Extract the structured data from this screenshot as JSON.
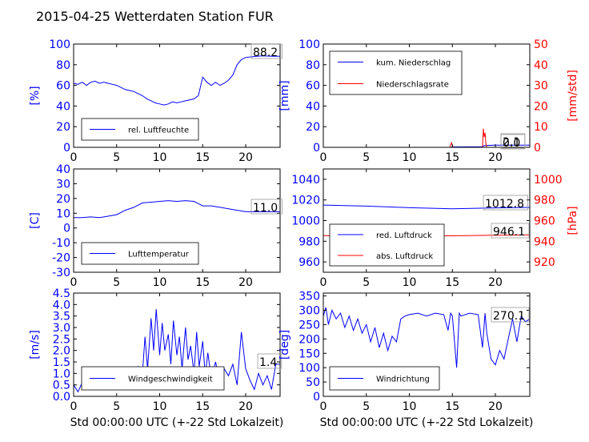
{
  "figure": {
    "title": "2015-04-25 Wetterdaten Station FUR",
    "xlabel": "Std 00:00:00 UTC (+-22 Std Lokalzeit)",
    "colors": {
      "blue": "#0000ff",
      "red": "#ff0000",
      "axis": "#000000"
    }
  },
  "chart_data": [
    {
      "type": "line",
      "name": "humidity",
      "ylabel": "[%]",
      "xlim": [
        0,
        24
      ],
      "ylim": [
        0,
        100
      ],
      "xticks": [
        0,
        5,
        10,
        15,
        20
      ],
      "yticks": [
        0,
        20,
        40,
        60,
        80,
        100
      ],
      "legend": [
        "rel. Luftfeuchte"
      ],
      "legend_loc": "lower-left",
      "last_value": "88.2",
      "series": [
        {
          "name": "rel. Luftfeuchte",
          "color": "#0000ff",
          "points": [
            [
              0,
              62
            ],
            [
              0.5,
              61
            ],
            [
              1,
              63
            ],
            [
              1.5,
              60
            ],
            [
              2,
              63
            ],
            [
              2.5,
              64
            ],
            [
              3,
              62
            ],
            [
              3.5,
              63
            ],
            [
              4,
              62
            ],
            [
              4.5,
              61
            ],
            [
              5,
              60
            ],
            [
              5.5,
              58
            ],
            [
              6,
              56
            ],
            [
              6.5,
              55
            ],
            [
              7,
              54
            ],
            [
              7.5,
              52
            ],
            [
              8,
              50
            ],
            [
              8.5,
              47
            ],
            [
              9,
              45
            ],
            [
              9.5,
              43
            ],
            [
              10,
              42
            ],
            [
              10.5,
              41
            ],
            [
              11,
              42
            ],
            [
              11.5,
              44
            ],
            [
              12,
              43
            ],
            [
              12.5,
              44
            ],
            [
              13,
              45
            ],
            [
              13.5,
              46
            ],
            [
              14,
              47
            ],
            [
              14.5,
              50
            ],
            [
              15,
              68
            ],
            [
              15.5,
              63
            ],
            [
              16,
              60
            ],
            [
              16.5,
              63
            ],
            [
              17,
              60
            ],
            [
              17.5,
              62
            ],
            [
              18,
              65
            ],
            [
              18.5,
              70
            ],
            [
              19,
              80
            ],
            [
              19.5,
              85
            ],
            [
              20,
              87
            ],
            [
              21,
              88
            ],
            [
              22,
              88.5
            ],
            [
              23,
              88.2
            ],
            [
              24,
              88.2
            ]
          ]
        }
      ]
    },
    {
      "type": "line",
      "name": "precipitation",
      "ylabel": "[mm]",
      "ylabel2": "[mm/std]",
      "xlim": [
        0,
        24
      ],
      "ylim": [
        0,
        100
      ],
      "ylim2": [
        0,
        50
      ],
      "xticks": [
        0,
        5,
        10,
        15,
        20
      ],
      "yticks": [
        0,
        20,
        40,
        60,
        80,
        100
      ],
      "yticks2": [
        0,
        10,
        20,
        30,
        40,
        50
      ],
      "legend": [
        "kum. Niederschlag",
        "Niederschlagsrate"
      ],
      "legend_loc": "upper-left",
      "last_values": [
        "2.1",
        "0.0"
      ],
      "series": [
        {
          "name": "kum. Niederschlag",
          "color": "#0000ff",
          "axis": "left",
          "points": [
            [
              0,
              0
            ],
            [
              14.8,
              0
            ],
            [
              15,
              0.4
            ],
            [
              18.5,
              0.6
            ],
            [
              18.7,
              1.8
            ],
            [
              20,
              2.1
            ],
            [
              24,
              2.1
            ]
          ]
        },
        {
          "name": "Niederschlagsrate",
          "color": "#ff0000",
          "axis": "right",
          "points": [
            [
              0,
              0
            ],
            [
              14.7,
              0
            ],
            [
              14.8,
              1.2
            ],
            [
              14.9,
              2.2
            ],
            [
              15,
              1.0
            ],
            [
              15.1,
              0
            ],
            [
              18.5,
              0
            ],
            [
              18.6,
              9
            ],
            [
              18.7,
              5
            ],
            [
              18.8,
              7
            ],
            [
              18.9,
              1.5
            ],
            [
              19,
              0
            ],
            [
              24,
              0
            ]
          ]
        }
      ]
    },
    {
      "type": "line",
      "name": "temperature",
      "ylabel": "[C]",
      "xlim": [
        0,
        24
      ],
      "ylim": [
        -30,
        40
      ],
      "xticks": [
        0,
        5,
        10,
        15,
        20
      ],
      "yticks": [
        -30,
        -20,
        -10,
        0,
        10,
        20,
        30,
        40
      ],
      "legend": [
        "Lufttemperatur"
      ],
      "legend_loc": "lower-left",
      "last_value": "11.0",
      "series": [
        {
          "name": "Lufttemperatur",
          "color": "#0000ff",
          "points": [
            [
              0,
              7
            ],
            [
              1,
              7
            ],
            [
              2,
              7.5
            ],
            [
              3,
              7
            ],
            [
              4,
              8
            ],
            [
              5,
              9
            ],
            [
              6,
              12
            ],
            [
              7,
              14
            ],
            [
              8,
              17
            ],
            [
              9,
              17.5
            ],
            [
              10,
              18
            ],
            [
              11,
              18.5
            ],
            [
              12,
              18
            ],
            [
              13,
              18.5
            ],
            [
              14,
              18
            ],
            [
              15,
              15
            ],
            [
              16,
              15
            ],
            [
              17,
              14
            ],
            [
              18,
              13
            ],
            [
              19,
              12
            ],
            [
              20,
              11
            ],
            [
              21,
              11
            ],
            [
              22,
              11
            ],
            [
              23,
              11
            ],
            [
              24,
              11
            ]
          ]
        }
      ]
    },
    {
      "type": "line",
      "name": "pressure",
      "ylabel2": "[hPa]",
      "xlim": [
        0,
        24
      ],
      "ylim": [
        950,
        1050
      ],
      "ylim2": [
        910,
        1010
      ],
      "xticks": [
        0,
        5,
        10,
        15,
        20
      ],
      "yticks": [
        960,
        980,
        1000,
        1020,
        1040
      ],
      "yticks2": [
        920,
        940,
        960,
        980,
        1000
      ],
      "legend": [
        "red. Luftdruck",
        "abs. Luftdruck"
      ],
      "legend_loc": "lower-left",
      "last_values": [
        "1012.8",
        "946.1"
      ],
      "series": [
        {
          "name": "red. Luftdruck",
          "color": "#0000ff",
          "axis": "left",
          "points": [
            [
              0,
              1015
            ],
            [
              5,
              1014
            ],
            [
              10,
              1012.5
            ],
            [
              15,
              1011.5
            ],
            [
              20,
              1012.3
            ],
            [
              24,
              1012.8
            ]
          ]
        },
        {
          "name": "abs. Luftdruck",
          "color": "#ff0000",
          "axis": "right",
          "points": [
            [
              0,
              945.5
            ],
            [
              5,
              945.2
            ],
            [
              10,
              945.5
            ],
            [
              15,
              945.3
            ],
            [
              20,
              945.8
            ],
            [
              24,
              946.1
            ]
          ]
        }
      ]
    },
    {
      "type": "line",
      "name": "windspeed",
      "ylabel": "[m/s]",
      "xlim": [
        0,
        24
      ],
      "ylim": [
        0,
        4.5
      ],
      "xticks": [
        0,
        5,
        10,
        15,
        20
      ],
      "yticks": [
        0.0,
        0.5,
        1.0,
        1.5,
        2.0,
        2.5,
        3.0,
        3.5,
        4.0,
        4.5
      ],
      "legend": [
        "Windgeschwindigkeit"
      ],
      "legend_loc": "lower-left",
      "last_value": "1.4",
      "series": [
        {
          "name": "Windgeschwindigkeit",
          "color": "#0000ff",
          "points": [
            [
              0,
              0.5
            ],
            [
              0.5,
              0.2
            ],
            [
              1,
              0.6
            ],
            [
              1.5,
              0.9
            ],
            [
              2,
              0.7
            ],
            [
              2.5,
              1.1
            ],
            [
              3,
              0.6
            ],
            [
              3.5,
              0.9
            ],
            [
              4,
              0.4
            ],
            [
              4.5,
              0.8
            ],
            [
              5,
              0.5
            ],
            [
              5.5,
              1.0
            ],
            [
              6,
              0.6
            ],
            [
              6.5,
              1.1
            ],
            [
              7,
              0.7
            ],
            [
              7.5,
              1.3
            ],
            [
              8,
              1.0
            ],
            [
              8.3,
              2.6
            ],
            [
              8.6,
              1.2
            ],
            [
              9,
              3.4
            ],
            [
              9.3,
              2.0
            ],
            [
              9.6,
              3.8
            ],
            [
              10,
              1.8
            ],
            [
              10.3,
              3.2
            ],
            [
              10.6,
              2.0
            ],
            [
              11,
              2.7
            ],
            [
              11.3,
              1.4
            ],
            [
              11.6,
              3.3
            ],
            [
              12,
              1.8
            ],
            [
              12.3,
              2.6
            ],
            [
              12.6,
              1.2
            ],
            [
              13,
              3.0
            ],
            [
              13.3,
              1.6
            ],
            [
              13.6,
              2.2
            ],
            [
              14,
              1.0
            ],
            [
              14.3,
              2.8
            ],
            [
              14.6,
              1.3
            ],
            [
              15,
              2.4
            ],
            [
              15.3,
              0.9
            ],
            [
              15.6,
              1.9
            ],
            [
              16,
              0.8
            ],
            [
              16.5,
              1.5
            ],
            [
              17,
              0.6
            ],
            [
              17.5,
              1.2
            ],
            [
              18,
              0.9
            ],
            [
              18.5,
              1.4
            ],
            [
              19,
              0.5
            ],
            [
              19.5,
              2.8
            ],
            [
              20,
              1.2
            ],
            [
              20.5,
              0.7
            ],
            [
              21,
              0.3
            ],
            [
              21.5,
              1.0
            ],
            [
              22,
              0.5
            ],
            [
              22.5,
              0.9
            ],
            [
              23,
              0.3
            ],
            [
              23.5,
              1.4
            ],
            [
              24,
              1.4
            ]
          ]
        }
      ]
    },
    {
      "type": "line",
      "name": "winddirection",
      "ylabel": "[deg]",
      "xlim": [
        0,
        24
      ],
      "ylim": [
        0,
        360
      ],
      "xticks": [
        0,
        5,
        10,
        15,
        20
      ],
      "yticks": [
        0,
        50,
        100,
        150,
        200,
        250,
        300,
        350
      ],
      "legend": [
        "Windrichtung"
      ],
      "legend_loc": "lower-left",
      "last_value": "270.1",
      "series": [
        {
          "name": "Windrichtung",
          "color": "#0000ff",
          "points": [
            [
              0,
              280
            ],
            [
              0.3,
              310
            ],
            [
              0.6,
              250
            ],
            [
              1,
              300
            ],
            [
              1.5,
              270
            ],
            [
              2,
              290
            ],
            [
              2.5,
              240
            ],
            [
              3,
              280
            ],
            [
              3.5,
              230
            ],
            [
              4,
              270
            ],
            [
              4.5,
              220
            ],
            [
              5,
              250
            ],
            [
              5.5,
              190
            ],
            [
              6,
              240
            ],
            [
              6.5,
              170
            ],
            [
              7,
              220
            ],
            [
              7.5,
              160
            ],
            [
              8,
              210
            ],
            [
              8.5,
              190
            ],
            [
              9,
              270
            ],
            [
              9.5,
              280
            ],
            [
              10,
              285
            ],
            [
              11,
              290
            ],
            [
              12,
              280
            ],
            [
              13,
              290
            ],
            [
              14,
              285
            ],
            [
              14.5,
              230
            ],
            [
              14.8,
              290
            ],
            [
              15,
              280
            ],
            [
              15.5,
              100
            ],
            [
              15.8,
              290
            ],
            [
              16,
              280
            ],
            [
              17,
              290
            ],
            [
              18,
              285
            ],
            [
              18.5,
              170
            ],
            [
              18.8,
              290
            ],
            [
              19,
              220
            ],
            [
              19.5,
              130
            ],
            [
              20,
              110
            ],
            [
              20.5,
              160
            ],
            [
              21,
              130
            ],
            [
              21.5,
              200
            ],
            [
              22,
              270
            ],
            [
              22.5,
              190
            ],
            [
              23,
              280
            ],
            [
              23.5,
              260
            ],
            [
              24,
              270
            ]
          ]
        }
      ]
    }
  ]
}
